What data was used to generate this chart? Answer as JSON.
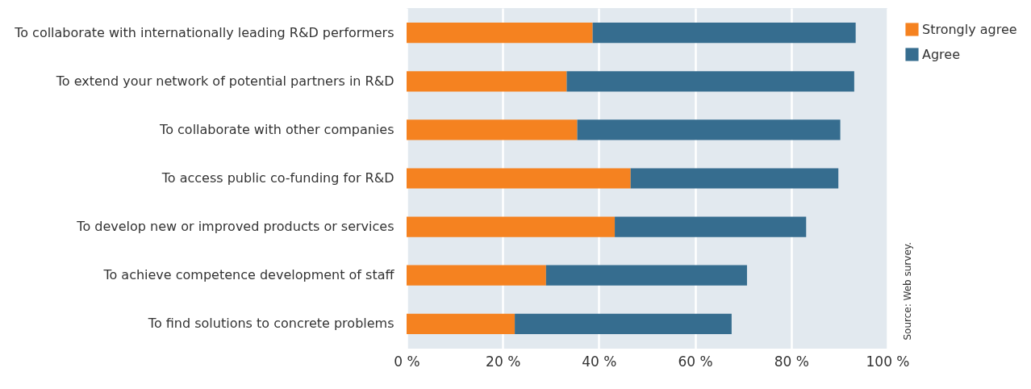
{
  "chart_data": {
    "type": "bar",
    "orientation": "horizontal",
    "stacked": true,
    "categories": [
      "To collaborate with internationally leading R&D performers",
      "To extend your network of potential partners in R&D",
      "To collaborate with other companies",
      "To access public co-funding for R&D",
      "To develop new or improved products or services",
      "To achieve competence development of staff",
      "To find solutions to concrete problems"
    ],
    "series": [
      {
        "name": "Strongly agree",
        "color": "#f58220",
        "values": [
          38.7,
          33.3,
          35.5,
          46.6,
          43.3,
          29.0,
          22.5
        ]
      },
      {
        "name": "Agree",
        "color": "#366d8f",
        "values": [
          54.7,
          59.8,
          54.7,
          43.2,
          39.8,
          41.8,
          45.1
        ]
      }
    ],
    "xlim": [
      0,
      100
    ],
    "xticks": [
      {
        "value": 0,
        "label": "0 %"
      },
      {
        "value": 20,
        "label": "20 %"
      },
      {
        "value": 40,
        "label": "40 %"
      },
      {
        "value": 60,
        "label": "60 %"
      },
      {
        "value": 80,
        "label": "80 %"
      },
      {
        "value": 100,
        "label": "100 %"
      }
    ],
    "grid": "x",
    "legend": "top right",
    "annotations": [
      "Source: Web survey."
    ]
  }
}
